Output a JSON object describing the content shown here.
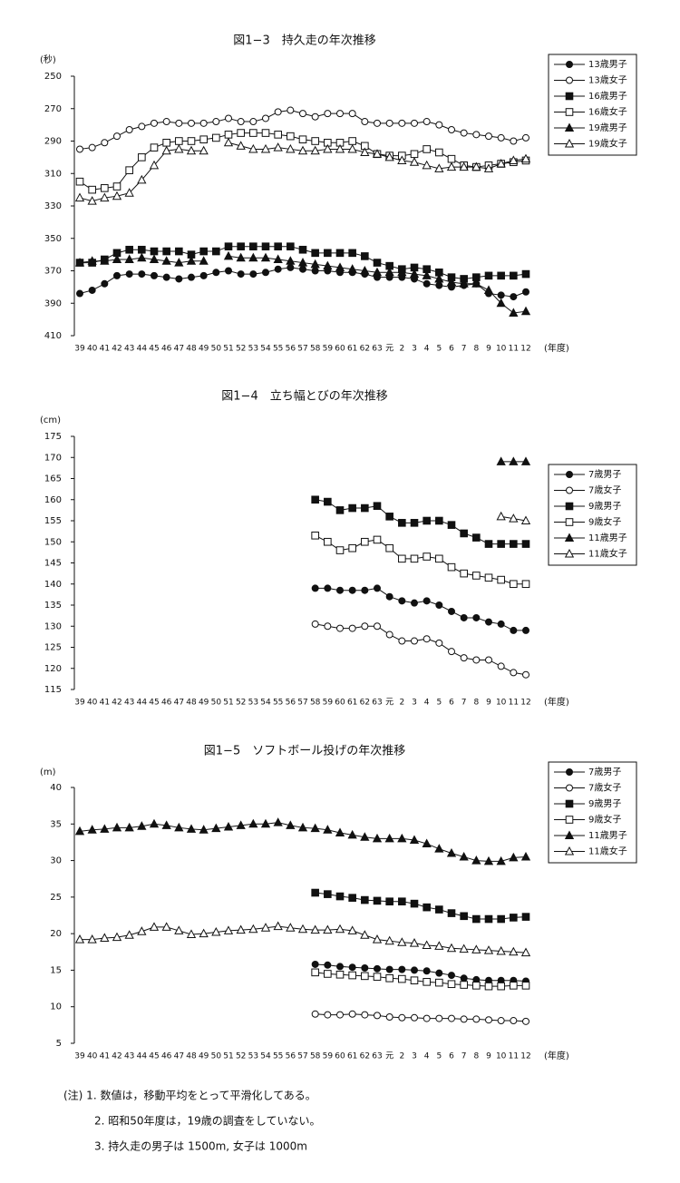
{
  "chart_data": [
    {
      "type": "line",
      "title": "図1−3　持久走の年次推移",
      "y_label": "(秒)",
      "x_label": "(年度)",
      "categories": [
        "39",
        "40",
        "41",
        "42",
        "43",
        "44",
        "45",
        "46",
        "47",
        "48",
        "49",
        "50",
        "51",
        "52",
        "53",
        "54",
        "55",
        "56",
        "57",
        "58",
        "59",
        "60",
        "61",
        "62",
        "63",
        "元",
        "2",
        "3",
        "4",
        "5",
        "6",
        "7",
        "8",
        "9",
        "10",
        "11",
        "12"
      ],
      "ylim": [
        410,
        250
      ],
      "yticks": [
        250,
        270,
        290,
        310,
        330,
        350,
        370,
        390,
        410
      ],
      "series": [
        {
          "name": "13歳男子",
          "marker": "circle",
          "fill": "#111",
          "color": "#111",
          "values": [
            384,
            382,
            378,
            373,
            372,
            372,
            373,
            374,
            375,
            374,
            373,
            371,
            370,
            372,
            372,
            371,
            369,
            368,
            369,
            370,
            370,
            371,
            371,
            372,
            374,
            374,
            374,
            375,
            378,
            379,
            380,
            379,
            378,
            384,
            385,
            386,
            383
          ]
        },
        {
          "name": "13歳女子",
          "marker": "circle",
          "fill": "#fff",
          "color": "#111",
          "values": [
            295,
            294,
            291,
            287,
            283,
            281,
            279,
            278,
            279,
            279,
            279,
            278,
            276,
            278,
            278,
            276,
            272,
            271,
            273,
            275,
            273,
            273,
            273,
            278,
            279,
            279,
            279,
            279,
            278,
            280,
            283,
            285,
            286,
            287,
            288,
            290,
            288
          ]
        },
        {
          "name": "16歳男子",
          "marker": "square",
          "fill": "#111",
          "color": "#111",
          "values": [
            365,
            365,
            363,
            359,
            357,
            357,
            358,
            358,
            358,
            360,
            358,
            358,
            355,
            355,
            355,
            355,
            355,
            355,
            357,
            359,
            359,
            359,
            359,
            361,
            365,
            367,
            369,
            368,
            369,
            371,
            374,
            375,
            374,
            373,
            373,
            373,
            372
          ]
        },
        {
          "name": "16歳女子",
          "marker": "square",
          "fill": "#fff",
          "color": "#111",
          "values": [
            315,
            320,
            319,
            318,
            308,
            300,
            294,
            291,
            290,
            290,
            289,
            288,
            286,
            285,
            285,
            285,
            286,
            287,
            289,
            290,
            291,
            291,
            290,
            293,
            298,
            299,
            299,
            298,
            295,
            297,
            301,
            305,
            306,
            305,
            304,
            303,
            302
          ]
        },
        {
          "name": "19歳男子",
          "marker": "triangle",
          "fill": "#111",
          "color": "#111",
          "values": [
            365,
            364,
            364,
            363,
            363,
            362,
            363,
            364,
            365,
            364,
            364,
            null,
            361,
            362,
            362,
            362,
            363,
            364,
            365,
            366,
            367,
            368,
            369,
            370,
            371,
            371,
            371,
            372,
            373,
            375,
            377,
            378,
            378,
            382,
            390,
            396,
            395
          ]
        },
        {
          "name": "19歳女子",
          "marker": "triangle",
          "fill": "#fff",
          "color": "#111",
          "values": [
            325,
            327,
            325,
            324,
            322,
            314,
            305,
            296,
            295,
            296,
            296,
            null,
            291,
            293,
            295,
            295,
            294,
            295,
            296,
            296,
            295,
            295,
            295,
            297,
            298,
            300,
            302,
            303,
            305,
            307,
            306,
            306,
            306,
            307,
            304,
            302,
            301
          ]
        }
      ]
    },
    {
      "type": "line",
      "title": "図1−4　立ち幅とびの年次推移",
      "y_label": "(cm)",
      "x_label": "(年度)",
      "categories": [
        "39",
        "40",
        "41",
        "42",
        "43",
        "44",
        "45",
        "46",
        "47",
        "48",
        "49",
        "50",
        "51",
        "52",
        "53",
        "54",
        "55",
        "56",
        "57",
        "58",
        "59",
        "60",
        "61",
        "62",
        "63",
        "元",
        "2",
        "3",
        "4",
        "5",
        "6",
        "7",
        "8",
        "9",
        "10",
        "11",
        "12"
      ],
      "ylim": [
        115,
        175
      ],
      "yticks": [
        115,
        120,
        125,
        130,
        135,
        140,
        145,
        150,
        155,
        160,
        165,
        170,
        175
      ],
      "series": [
        {
          "name": "7歳男子",
          "marker": "circle",
          "fill": "#111",
          "color": "#111",
          "values": [
            null,
            null,
            null,
            null,
            null,
            null,
            null,
            null,
            null,
            null,
            null,
            null,
            null,
            null,
            null,
            null,
            null,
            null,
            null,
            139,
            139,
            138.5,
            138.5,
            138.5,
            139,
            137,
            136,
            135.5,
            136,
            135,
            133.5,
            132,
            132,
            131,
            130.5,
            129,
            129
          ]
        },
        {
          "name": "7歳女子",
          "marker": "circle",
          "fill": "#fff",
          "color": "#111",
          "values": [
            null,
            null,
            null,
            null,
            null,
            null,
            null,
            null,
            null,
            null,
            null,
            null,
            null,
            null,
            null,
            null,
            null,
            null,
            null,
            130.5,
            130,
            129.5,
            129.5,
            130,
            130,
            128,
            126.5,
            126.5,
            127,
            126,
            124,
            122.5,
            122,
            122,
            120.5,
            119,
            118.5
          ]
        },
        {
          "name": "9歳男子",
          "marker": "square",
          "fill": "#111",
          "color": "#111",
          "values": [
            null,
            null,
            null,
            null,
            null,
            null,
            null,
            null,
            null,
            null,
            null,
            null,
            null,
            null,
            null,
            null,
            null,
            null,
            null,
            160,
            159.5,
            157.5,
            158,
            158,
            158.5,
            156,
            154.5,
            154.5,
            155,
            155,
            154,
            152,
            151,
            149.5,
            149.5,
            149.5,
            149.5
          ]
        },
        {
          "name": "9歳女子",
          "marker": "square",
          "fill": "#fff",
          "color": "#111",
          "values": [
            null,
            null,
            null,
            null,
            null,
            null,
            null,
            null,
            null,
            null,
            null,
            null,
            null,
            null,
            null,
            null,
            null,
            null,
            null,
            151.5,
            150,
            148,
            148.5,
            150,
            150.5,
            148.5,
            146,
            146,
            146.5,
            146,
            144,
            142.5,
            142,
            141.5,
            141,
            140,
            140
          ]
        },
        {
          "name": "11歳男子",
          "marker": "triangle",
          "fill": "#111",
          "color": "#111",
          "values": [
            null,
            null,
            null,
            null,
            null,
            null,
            null,
            null,
            null,
            null,
            null,
            null,
            null,
            null,
            null,
            null,
            null,
            null,
            null,
            null,
            null,
            null,
            null,
            null,
            null,
            null,
            null,
            null,
            null,
            null,
            null,
            null,
            null,
            null,
            169,
            169,
            169
          ]
        },
        {
          "name": "11歳女子",
          "marker": "triangle",
          "fill": "#fff",
          "color": "#111",
          "values": [
            null,
            null,
            null,
            null,
            null,
            null,
            null,
            null,
            null,
            null,
            null,
            null,
            null,
            null,
            null,
            null,
            null,
            null,
            null,
            null,
            null,
            null,
            null,
            null,
            null,
            null,
            null,
            null,
            null,
            null,
            null,
            null,
            null,
            null,
            156,
            155.5,
            155
          ]
        }
      ]
    },
    {
      "type": "line",
      "title": "図1−5　ソフトボール投げの年次推移",
      "y_label": "(m)",
      "x_label": "(年度)",
      "categories": [
        "39",
        "40",
        "41",
        "42",
        "43",
        "44",
        "45",
        "46",
        "47",
        "48",
        "49",
        "50",
        "51",
        "52",
        "53",
        "54",
        "55",
        "56",
        "57",
        "58",
        "59",
        "60",
        "61",
        "62",
        "63",
        "元",
        "2",
        "3",
        "4",
        "5",
        "6",
        "7",
        "8",
        "9",
        "10",
        "11",
        "12"
      ],
      "ylim": [
        5,
        40
      ],
      "yticks": [
        5,
        10,
        15,
        20,
        25,
        30,
        35,
        40
      ],
      "series": [
        {
          "name": "7歳男子",
          "marker": "circle",
          "fill": "#111",
          "color": "#111",
          "values": [
            null,
            null,
            null,
            null,
            null,
            null,
            null,
            null,
            null,
            null,
            null,
            null,
            null,
            null,
            null,
            null,
            null,
            null,
            null,
            15.8,
            15.7,
            15.5,
            15.4,
            15.3,
            15.2,
            15.1,
            15.1,
            15,
            14.9,
            14.6,
            14.3,
            13.9,
            13.7,
            13.6,
            13.6,
            13.6,
            13.5
          ]
        },
        {
          "name": "7歳女子",
          "marker": "circle",
          "fill": "#fff",
          "color": "#111",
          "values": [
            null,
            null,
            null,
            null,
            null,
            null,
            null,
            null,
            null,
            null,
            null,
            null,
            null,
            null,
            null,
            null,
            null,
            null,
            null,
            9,
            8.9,
            8.9,
            9,
            8.9,
            8.8,
            8.6,
            8.5,
            8.5,
            8.4,
            8.4,
            8.4,
            8.3,
            8.3,
            8.2,
            8.1,
            8.1,
            8
          ]
        },
        {
          "name": "9歳男子",
          "marker": "square",
          "fill": "#111",
          "color": "#111",
          "values": [
            null,
            null,
            null,
            null,
            null,
            null,
            null,
            null,
            null,
            null,
            null,
            null,
            null,
            null,
            null,
            null,
            null,
            null,
            null,
            25.6,
            25.4,
            25.1,
            24.9,
            24.6,
            24.5,
            24.4,
            24.4,
            24.1,
            23.6,
            23.3,
            22.8,
            22.4,
            22,
            22,
            22,
            22.2,
            22.3
          ]
        },
        {
          "name": "9歳女子",
          "marker": "square",
          "fill": "#fff",
          "color": "#111",
          "values": [
            null,
            null,
            null,
            null,
            null,
            null,
            null,
            null,
            null,
            null,
            null,
            null,
            null,
            null,
            null,
            null,
            null,
            null,
            null,
            14.7,
            14.5,
            14.4,
            14.3,
            14.2,
            14.1,
            13.9,
            13.8,
            13.6,
            13.4,
            13.3,
            13.1,
            13,
            12.9,
            12.8,
            12.8,
            12.9,
            12.9
          ]
        },
        {
          "name": "11歳男子",
          "marker": "triangle",
          "fill": "#111",
          "color": "#111",
          "values": [
            34,
            34.2,
            34.3,
            34.5,
            34.5,
            34.7,
            35,
            34.8,
            34.5,
            34.3,
            34.2,
            34.4,
            34.6,
            34.8,
            35,
            35,
            35.2,
            34.8,
            34.5,
            34.4,
            34.2,
            33.8,
            33.5,
            33.2,
            33,
            33,
            33,
            32.8,
            32.3,
            31.6,
            31,
            30.5,
            30,
            29.9,
            29.9,
            30.4,
            30.5
          ]
        },
        {
          "name": "11歳女子",
          "marker": "triangle",
          "fill": "#fff",
          "color": "#111",
          "values": [
            19.2,
            19.2,
            19.4,
            19.5,
            19.8,
            20.3,
            20.9,
            20.9,
            20.4,
            19.9,
            20,
            20.2,
            20.4,
            20.5,
            20.6,
            20.8,
            21,
            20.8,
            20.6,
            20.5,
            20.5,
            20.6,
            20.4,
            19.8,
            19.2,
            19,
            18.8,
            18.7,
            18.4,
            18.3,
            18,
            17.9,
            17.8,
            17.7,
            17.6,
            17.5,
            17.4
          ]
        }
      ]
    }
  ],
  "notes": [
    "(注) 1. 数値は，移動平均をとって平滑化してある。",
    "2. 昭和50年度は，19歳の調査をしていない。",
    "3. 持久走の男子は 1500m, 女子は 1000m"
  ]
}
